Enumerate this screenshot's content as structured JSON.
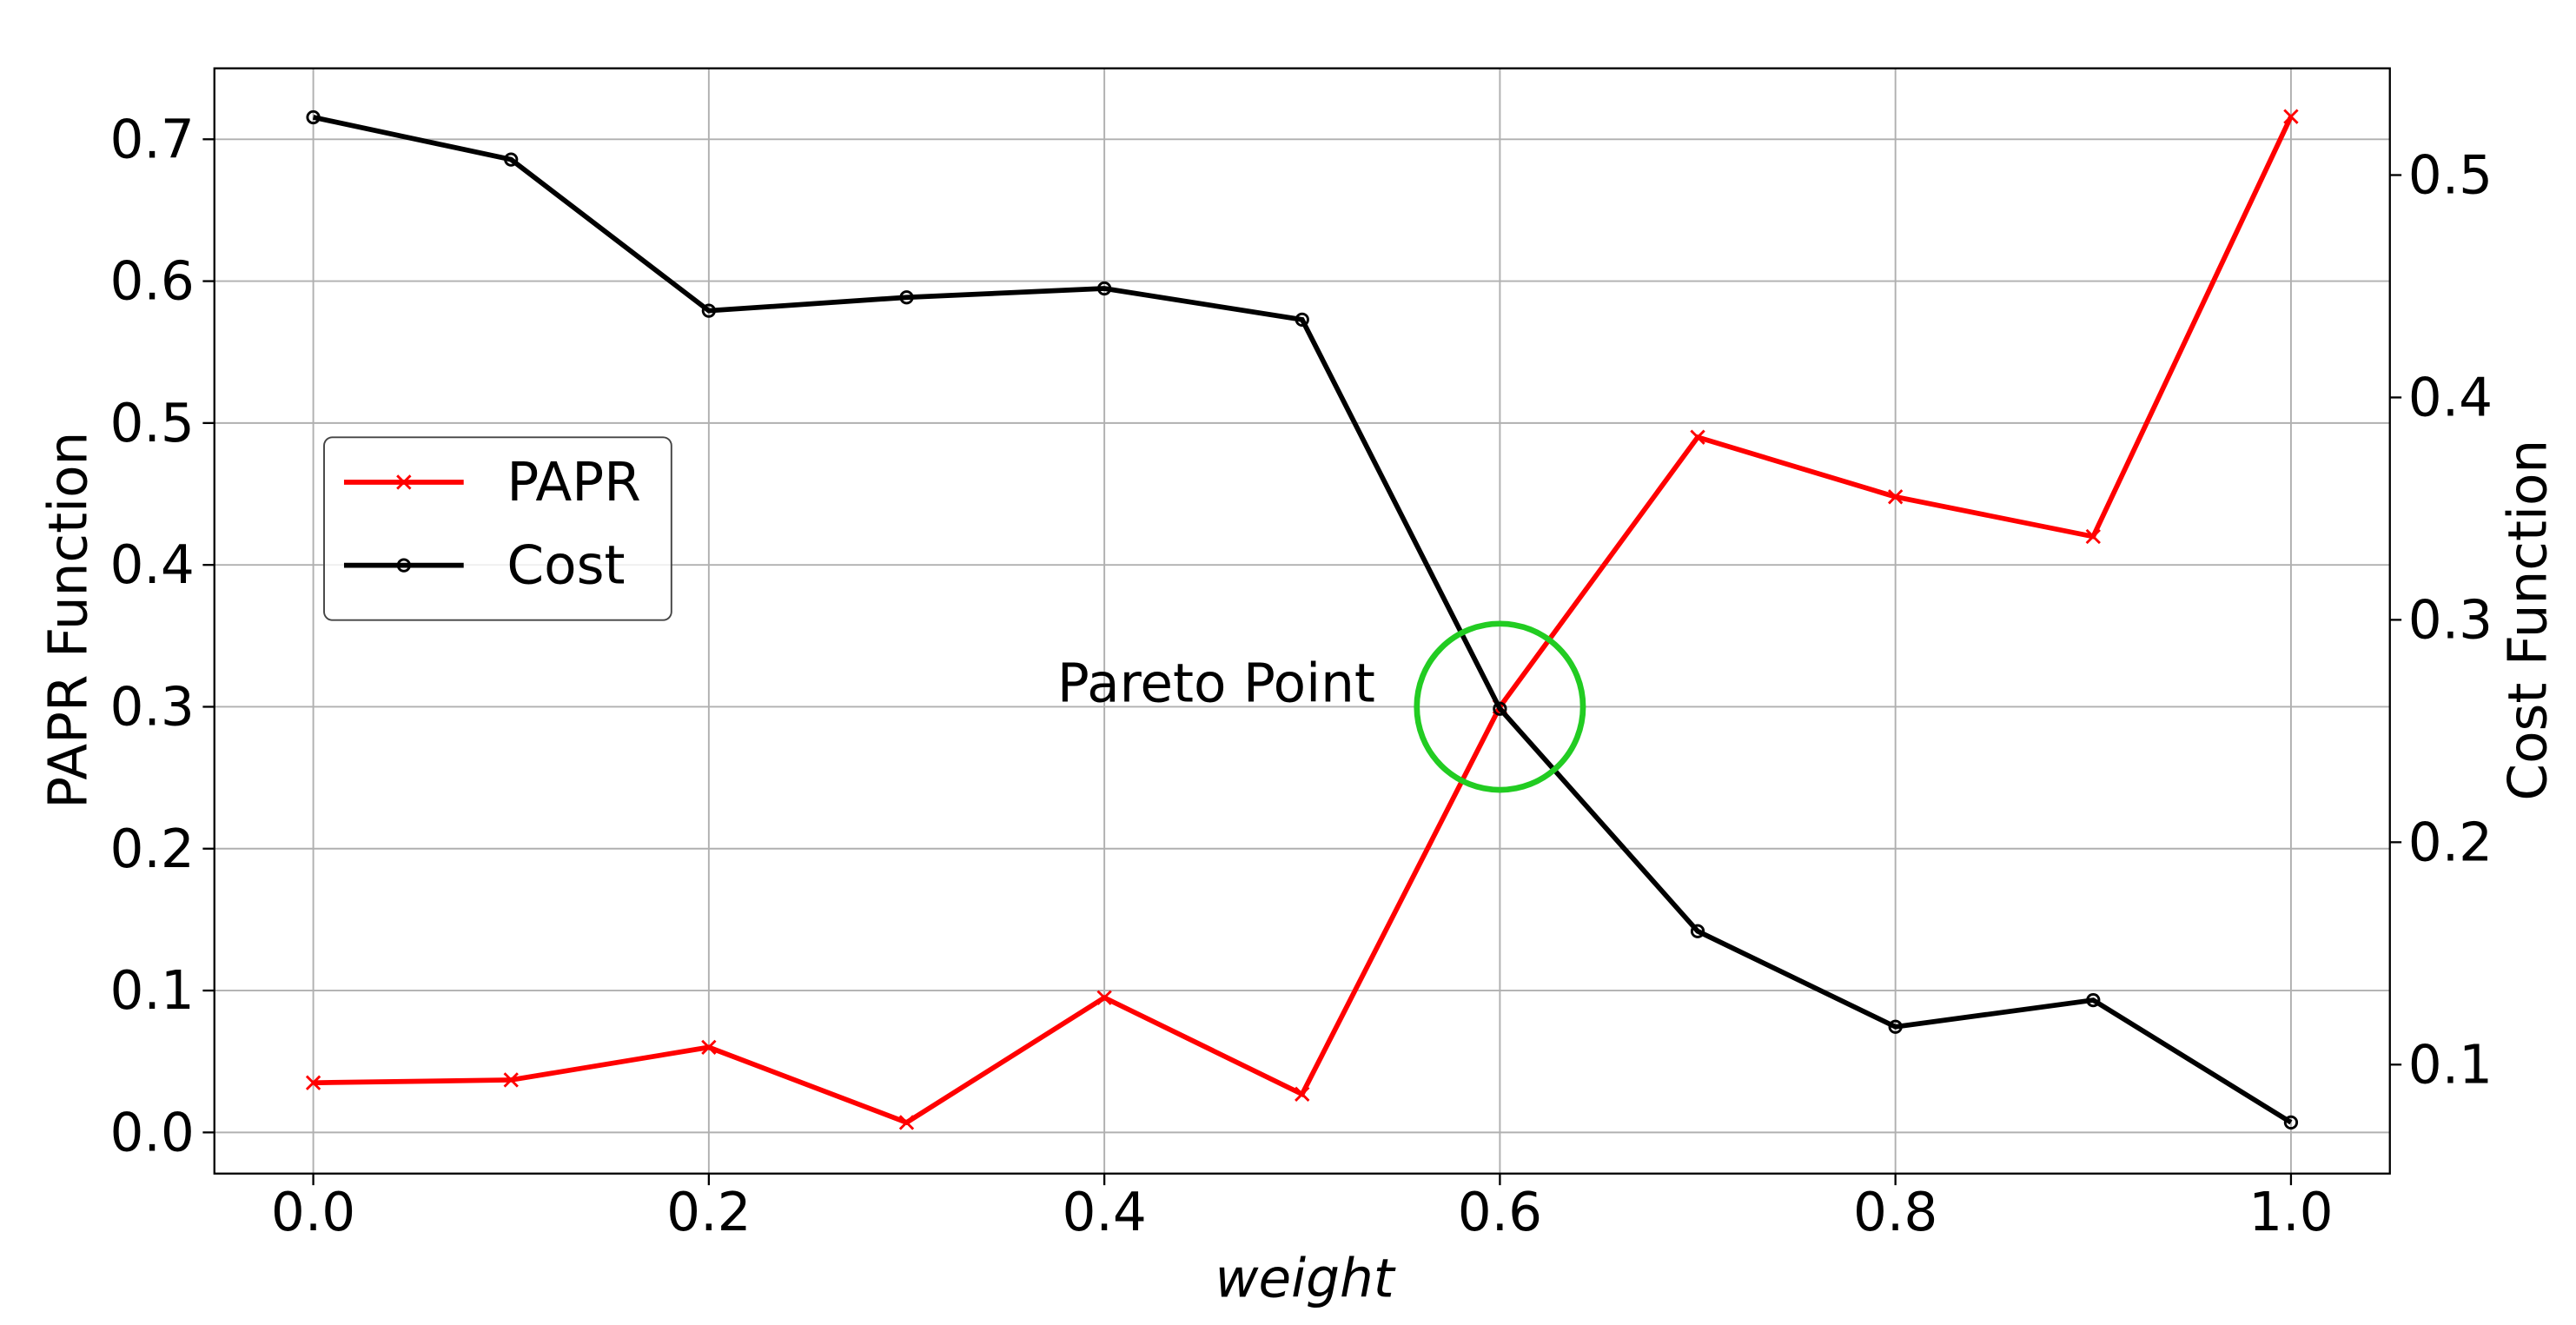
{
  "chart_data": {
    "type": "line",
    "xlabel": "weight",
    "ylabel": "PAPR Function",
    "y2label": "Cost Function",
    "x": [
      0.0,
      0.1,
      0.2,
      0.3,
      0.4,
      0.5,
      0.6,
      0.7,
      0.8,
      0.9,
      1.0
    ],
    "series": [
      {
        "name": "PAPR",
        "color": "#ff0000",
        "marker": "x",
        "values": [
          0.035,
          0.037,
          0.06,
          0.007,
          0.095,
          0.027,
          0.3,
          0.49,
          0.448,
          0.42,
          0.716
        ]
      },
      {
        "name": "Cost",
        "color": "#000000",
        "marker": "o",
        "axis": "y2",
        "values": [
          0.526,
          0.507,
          0.439,
          0.445,
          0.449,
          0.435,
          0.26,
          0.16,
          0.117,
          0.129,
          0.074
        ]
      }
    ],
    "xlim": [
      -0.05,
      1.05
    ],
    "xticks": [
      {
        "value": 0,
        "label": "0.0"
      },
      0.2,
      0.4,
      0.6,
      0.8,
      {
        "value": 1,
        "label": "1.0"
      }
    ],
    "ylim": [
      -0.029,
      0.75
    ],
    "yticks": [
      {
        "value": 0,
        "label": "0.0"
      },
      0.1,
      0.2,
      0.3,
      0.4,
      0.5,
      0.6,
      0.7
    ],
    "y2lim": [
      0.051,
      0.548
    ],
    "y2ticks": [
      0.1,
      0.2,
      0.3,
      0.4,
      0.5
    ],
    "grid": true,
    "legend": "center left",
    "annotation": {
      "text": "Pareto Point",
      "x": 0.6,
      "y": 0.3,
      "color": "#22cc22"
    }
  }
}
